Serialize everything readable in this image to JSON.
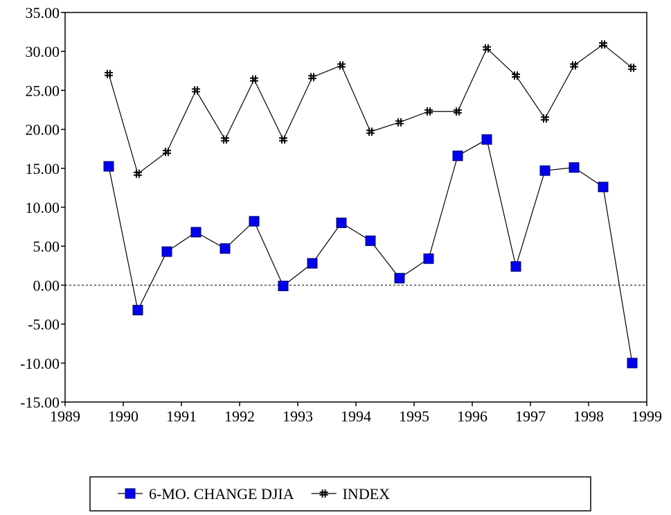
{
  "chart_data": {
    "type": "line",
    "x": [
      1989.75,
      1990.25,
      1990.75,
      1991.25,
      1991.75,
      1992.25,
      1992.75,
      1993.25,
      1993.75,
      1994.25,
      1994.75,
      1995.25,
      1995.75,
      1996.25,
      1996.75,
      1997.25,
      1997.75,
      1998.25,
      1998.75
    ],
    "series": [
      {
        "name": "6-MO. CHANGE DJIA",
        "color": "#0000ee",
        "marker": "square",
        "values": [
          15.25,
          -3.2,
          4.3,
          6.8,
          4.7,
          8.2,
          -0.1,
          2.8,
          8.0,
          5.7,
          0.9,
          3.4,
          16.6,
          18.7,
          2.4,
          14.7,
          15.1,
          12.6,
          -10.0
        ]
      },
      {
        "name": "INDEX",
        "color": "#000000",
        "marker": "cross",
        "values": [
          27.1,
          14.3,
          17.1,
          25.0,
          18.7,
          26.4,
          18.7,
          26.7,
          28.2,
          19.7,
          20.9,
          22.3,
          22.3,
          30.4,
          26.9,
          21.4,
          28.2,
          30.9,
          27.9
        ]
      }
    ],
    "xlim": [
      1989,
      1999
    ],
    "xticks": [
      1989,
      1990,
      1991,
      1992,
      1993,
      1994,
      1995,
      1996,
      1997,
      1998,
      1999
    ],
    "ylim": [
      -15,
      35
    ],
    "yticks": [
      {
        "value": -15,
        "label": "-15.00"
      },
      {
        "value": -10,
        "label": "-10.00"
      },
      {
        "value": -5,
        "label": "-5.00"
      },
      {
        "value": 0,
        "label": "0.00"
      },
      {
        "value": 5,
        "label": "5.00"
      },
      {
        "value": 10,
        "label": "10.00"
      },
      {
        "value": 15,
        "label": "15.00"
      },
      {
        "value": 20,
        "label": "20.00"
      },
      {
        "value": 25,
        "label": "25.00"
      },
      {
        "value": 30,
        "label": "30.00"
      },
      {
        "value": 35,
        "label": "35.00"
      }
    ],
    "zero_line": true,
    "legend": "bottom"
  }
}
